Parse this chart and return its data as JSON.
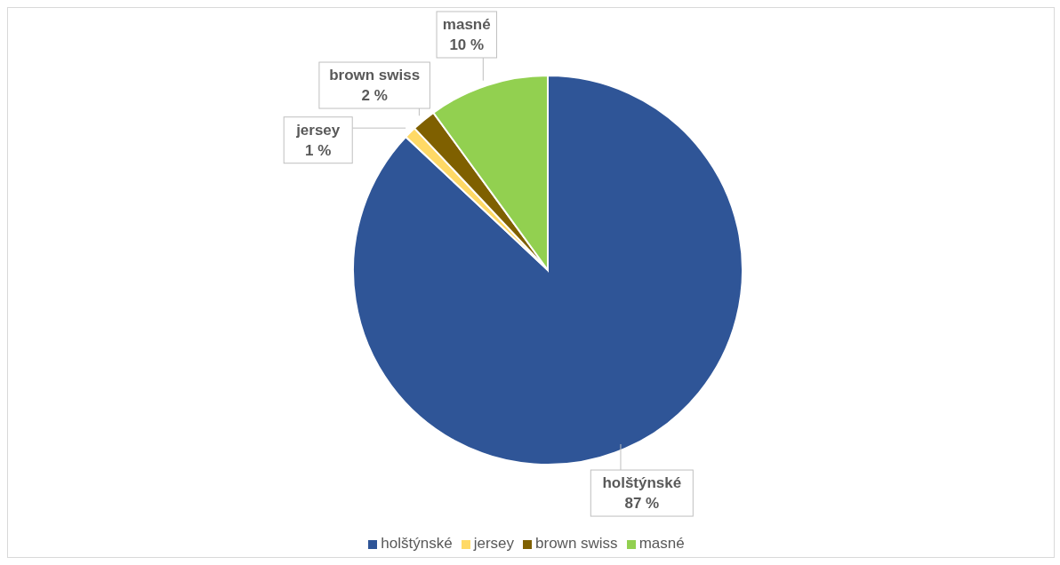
{
  "chart_data": {
    "type": "pie",
    "categories": [
      "holštýnské",
      "jersey",
      "brown swiss",
      "masné"
    ],
    "values": [
      87,
      1,
      2,
      10
    ],
    "colors": [
      "#2f5597",
      "#ffd966",
      "#7f6000",
      "#92d050"
    ],
    "value_labels": [
      "87 %",
      "1 %",
      "2 %",
      "10 %"
    ],
    "legend": "bottom"
  }
}
